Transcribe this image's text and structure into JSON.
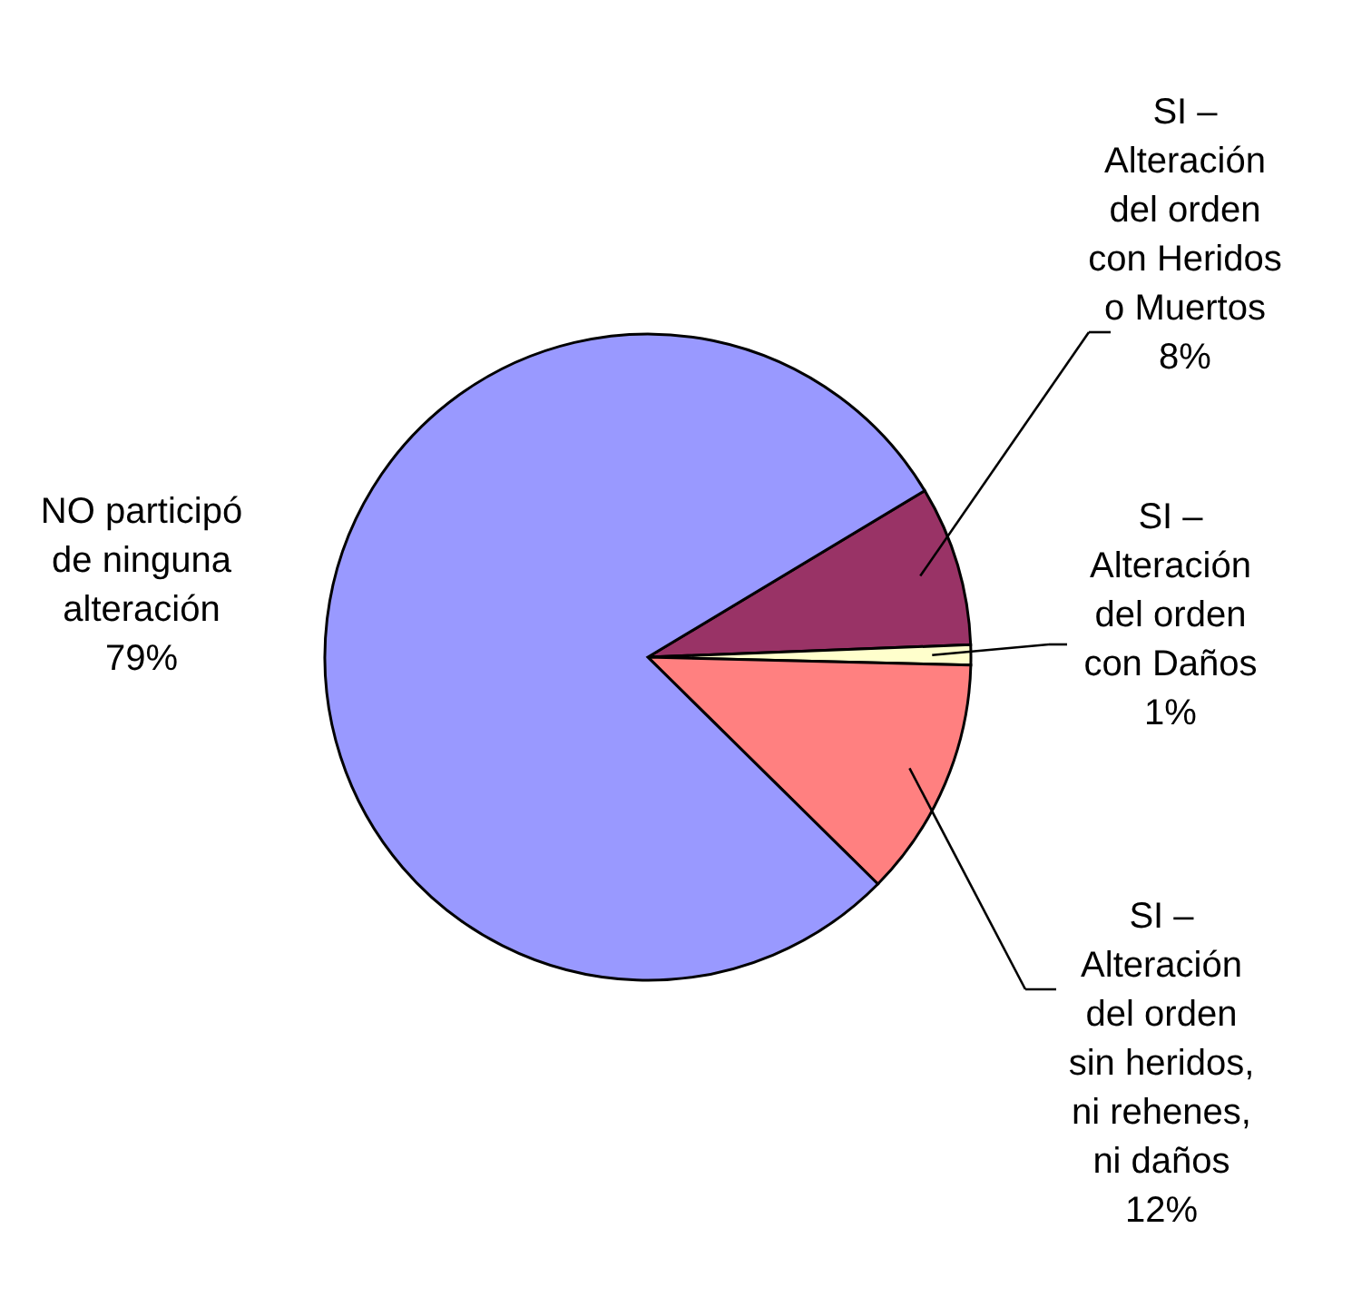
{
  "chart_data": {
    "type": "pie",
    "categories": [
      "SI – Alteración del orden con Heridos o Muertos",
      "SI – Alteración del orden con Daños",
      "SI – Alteración del orden sin heridos, ni rehenes, ni daños",
      "NO participó de ninguna alteración"
    ],
    "values": [
      8,
      1,
      12,
      79
    ],
    "colors": [
      "#993366",
      "#ffffcc",
      "#ff8080",
      "#9999ff"
    ],
    "value_labels": [
      "8%",
      "1%",
      "12%",
      "79%"
    ]
  }
}
